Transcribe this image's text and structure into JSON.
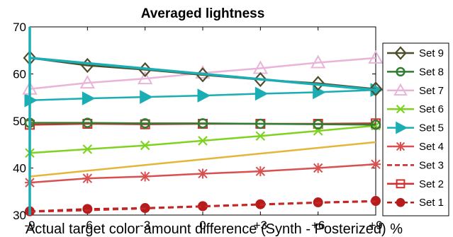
{
  "chart_data": {
    "type": "line",
    "title": "Averaged lightness",
    "xlabel": "Actual target color amount difference (Synth - Posterized) %",
    "ylabel": "",
    "x": [
      -9,
      -6,
      -3,
      0,
      3,
      6,
      9
    ],
    "x_tick_labels": [
      "-9",
      "-6",
      "-3",
      "0",
      "+3",
      "+6",
      "+9"
    ],
    "xlim": [
      -9,
      9
    ],
    "ylim": [
      30,
      70
    ],
    "y_ticks": [
      30,
      40,
      50,
      60,
      70
    ],
    "grid": false,
    "legend_position": "right",
    "fit_line_color": "#e5b53a",
    "fit_line": [
      38.2,
      45.5
    ],
    "series": [
      {
        "name": "Set 9",
        "color": "#4d4d2a",
        "marker": "diamond",
        "line": "solid",
        "values": [
          63.4,
          61.8,
          60.9,
          59.8,
          58.8,
          58.0,
          56.8
        ]
      },
      {
        "name": "Set 8",
        "color": "#2e7d32",
        "marker": "circle-open",
        "line": "solid",
        "values": [
          49.6,
          49.6,
          49.5,
          49.5,
          49.4,
          49.3,
          49.2
        ]
      },
      {
        "name": "Set 7",
        "color": "#e8b4d8",
        "marker": "triangle-up",
        "line": "solid",
        "values": [
          56.8,
          58.1,
          59.0,
          60.2,
          61.2,
          62.4,
          63.4
        ]
      },
      {
        "name": "Set 6",
        "color": "#7ed321",
        "marker": "x",
        "line": "solid",
        "values": [
          43.2,
          44.0,
          44.8,
          45.8,
          46.8,
          47.9,
          49.0
        ]
      },
      {
        "name": "Set 5",
        "color": "#1aaeb4",
        "marker": "triangle-right",
        "line": "solid",
        "values": [
          54.4,
          54.8,
          55.1,
          55.4,
          55.8,
          56.1,
          56.6
        ]
      },
      {
        "name": "Set 4",
        "color": "#d95050",
        "marker": "asterisk",
        "line": "solid",
        "values": [
          36.9,
          37.8,
          38.2,
          38.8,
          39.3,
          40.0,
          40.8
        ]
      },
      {
        "name": "Set 3",
        "color": "#c62828",
        "marker": "none",
        "line": "dashed",
        "values": [
          30.7,
          31.0,
          31.4,
          31.8,
          32.2,
          32.6,
          32.9
        ]
      },
      {
        "name": "Set 2",
        "color": "#d32f2f",
        "marker": "square-open",
        "line": "solid",
        "values": [
          49.2,
          49.4,
          49.3,
          49.4,
          49.4,
          49.4,
          49.5
        ]
      },
      {
        "name": "Set 1",
        "color": "#b71c1c",
        "marker": "circle-filled",
        "line": "dashed",
        "values": [
          30.8,
          31.3,
          31.5,
          31.9,
          32.3,
          32.7,
          33.0
        ]
      }
    ],
    "trend_line": {
      "color": "#1aaeb4",
      "values": [
        63.4,
        56.6
      ]
    },
    "y_spike": {
      "color": "#1aaeb4",
      "x": -9,
      "y_from": 30,
      "y_to": 70
    }
  }
}
